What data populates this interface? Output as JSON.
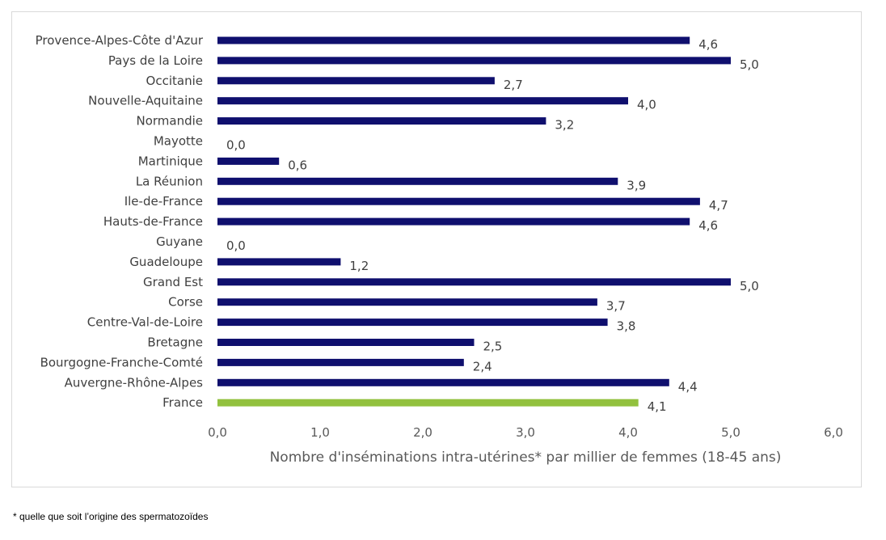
{
  "chart_data": {
    "type": "bar",
    "orientation": "horizontal",
    "categories": [
      "Provence-Alpes-Côte d'Azur",
      "Pays de la Loire",
      "Occitanie",
      "Nouvelle-Aquitaine",
      "Normandie",
      "Mayotte",
      "Martinique",
      "La Réunion",
      "Ile-de-France",
      "Hauts-de-France",
      "Guyane",
      "Guadeloupe",
      "Grand Est",
      "Corse",
      "Centre-Val-de-Loire",
      "Bretagne",
      "Bourgogne-Franche-Comté",
      "Auvergne-Rhône-Alpes",
      "France"
    ],
    "values": [
      4.6,
      5.0,
      2.7,
      4.0,
      3.2,
      0.0,
      0.6,
      3.9,
      4.7,
      4.6,
      0.0,
      1.2,
      5.0,
      3.7,
      3.8,
      2.5,
      2.4,
      4.4,
      4.1
    ],
    "value_labels": [
      "4,6",
      "5,0",
      "2,7",
      "4,0",
      "3,2",
      "0,0",
      "0,6",
      "3,9",
      "4,7",
      "4,6",
      "0,0",
      "1,2",
      "5,0",
      "3,7",
      "3,8",
      "2,5",
      "2,4",
      "4,4",
      "4,1"
    ],
    "highlight_category": "France",
    "xlabel": "Nombre d'inséminations intra-utérines* par millier de femmes (18-45 ans)",
    "xlim": [
      0,
      6
    ],
    "xticks": [
      0,
      1,
      2,
      3,
      4,
      5,
      6
    ],
    "xtick_labels": [
      "0,0",
      "1,0",
      "2,0",
      "3,0",
      "4,0",
      "5,0",
      "6,0"
    ],
    "grid": false,
    "legend": "none",
    "colors": {
      "bar": "#0f0f6e",
      "highlight": "#92c13e"
    }
  },
  "footnote": "* quelle que soit l’origine des spermatozoïdes"
}
